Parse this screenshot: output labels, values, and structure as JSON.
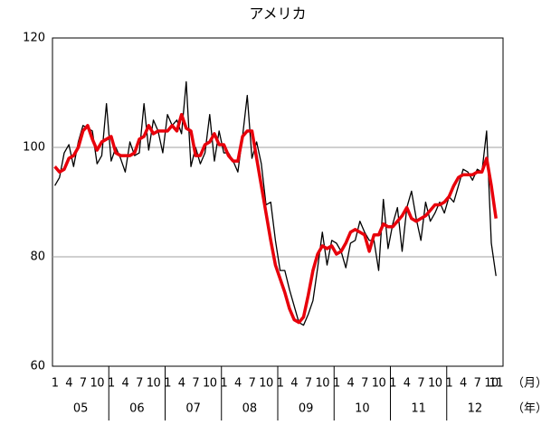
{
  "chart_data": {
    "type": "line",
    "title": "アメリカ",
    "categories": [
      "1",
      null,
      null,
      "4",
      null,
      null,
      "7",
      null,
      null,
      "10",
      null,
      null,
      "1",
      null,
      null,
      "4",
      null,
      null,
      "7",
      null,
      null,
      "10",
      null,
      null,
      "1",
      null,
      null,
      "4",
      null,
      null,
      "7",
      null,
      null,
      "10",
      null,
      null,
      "1",
      null,
      null,
      "4",
      null,
      null,
      "7",
      null,
      null,
      "10",
      null,
      null,
      "1",
      null,
      null,
      "4",
      null,
      null,
      "7",
      null,
      null,
      "10",
      null,
      null,
      "1",
      null,
      null,
      "4",
      null,
      null,
      "7",
      null,
      null,
      "10",
      null,
      null,
      "1",
      null,
      null,
      "4",
      null,
      null,
      "7",
      null,
      null,
      "10",
      null,
      null,
      "1",
      null,
      null,
      "4",
      null,
      null,
      "7",
      null,
      null,
      "10",
      "11"
    ],
    "year_labels": [
      "05",
      "06",
      "07",
      "08",
      "09",
      "10",
      "11",
      "12"
    ],
    "x_unit_labels": [
      "（月）",
      "（年）"
    ],
    "series": [
      {
        "color": "#000000",
        "width": 1.3,
        "values": [
          93,
          94.5,
          99,
          100.5,
          96.5,
          101,
          104,
          103.5,
          103,
          97,
          98.5,
          108,
          97.5,
          100,
          98,
          95.5,
          101,
          98.5,
          99,
          108,
          99.5,
          105,
          103,
          99,
          106,
          104,
          105,
          102.5,
          112,
          96.5,
          100,
          97,
          99,
          106,
          97.5,
          103,
          99,
          99,
          97.5,
          95.5,
          102,
          109.5,
          98,
          101,
          97,
          89.5,
          90,
          83,
          77.5,
          77.5,
          74,
          71,
          68,
          67.5,
          69.5,
          72,
          78,
          84.5,
          78.5,
          83,
          82.5,
          81,
          78,
          82.5,
          83,
          86.5,
          84.5,
          83,
          83,
          77.5,
          90.5,
          81.5,
          86,
          89,
          81,
          89,
          92,
          87,
          83,
          90,
          86.5,
          88,
          90,
          88,
          91,
          90,
          93,
          96,
          95.5,
          94,
          96,
          95.5,
          103,
          82.5,
          76.5
        ]
      },
      {
        "color": "#e8000b",
        "width": 3.5,
        "values": [
          96.5,
          95.5,
          96,
          98,
          98.5,
          100,
          103,
          104,
          101.5,
          99.5,
          101,
          101.5,
          102,
          99,
          98.5,
          98.5,
          98.5,
          99,
          101.5,
          102,
          104,
          102.5,
          103,
          103,
          103,
          104,
          103,
          106,
          103.5,
          103,
          98.5,
          98.5,
          100.5,
          101,
          102.5,
          100.5,
          100.5,
          98.5,
          97.5,
          97.5,
          102,
          103,
          103,
          98,
          93,
          88,
          83,
          78.5,
          76,
          73.5,
          70.5,
          68.5,
          68,
          69,
          73,
          77.5,
          80.5,
          82,
          81.5,
          82,
          80.5,
          81,
          82.5,
          84.5,
          85,
          84.5,
          84,
          81,
          84,
          84,
          86,
          85.5,
          85.5,
          86.5,
          87.5,
          89,
          87,
          86.5,
          87,
          87.5,
          88.5,
          89.5,
          89.5,
          90,
          91,
          93,
          94.5,
          95,
          95,
          95,
          95.5,
          95.5,
          98,
          93,
          87
        ]
      }
    ],
    "ylim": [
      60,
      120
    ],
    "yticks": [
      60,
      80,
      100,
      120
    ],
    "grid": true
  }
}
